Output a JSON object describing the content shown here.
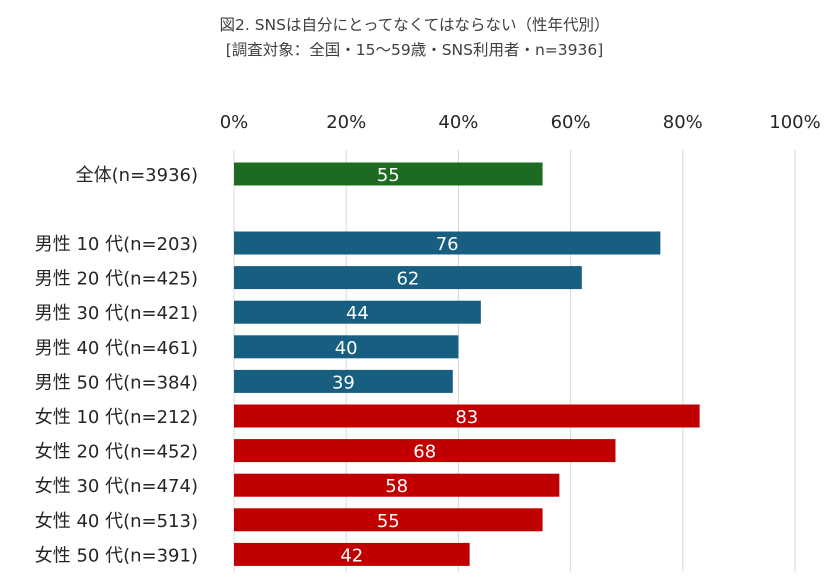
{
  "chart_data": {
    "type": "bar",
    "orientation": "horizontal",
    "title": "図2. SNSは自分にとってなくてはならない（性年代別）",
    "subtitle": "[調査対象：全国・15～59歳・SNS利用者・n=3936]",
    "xlim": [
      0,
      100
    ],
    "x_ticks": [
      "0%",
      "20%",
      "40%",
      "60%",
      "80%",
      "100%"
    ],
    "tick_values": [
      0,
      20,
      40,
      60,
      80,
      100
    ],
    "axis_position": "top",
    "grid": true,
    "categories": [
      "全体(n=3936)",
      "男性 10 代(n=203)",
      "男性 20 代(n=425)",
      "男性 30 代(n=421)",
      "男性 40 代(n=461)",
      "男性 50 代(n=384)",
      "女性 10 代(n=212)",
      "女性 20 代(n=452)",
      "女性 30 代(n=474)",
      "女性 40 代(n=513)",
      "女性 50 代(n=391)"
    ],
    "values": [
      55,
      76,
      62,
      44,
      40,
      39,
      83,
      68,
      58,
      55,
      42
    ],
    "groups": [
      "total",
      "male",
      "male",
      "male",
      "male",
      "male",
      "female",
      "female",
      "female",
      "female",
      "female"
    ],
    "colors": {
      "total": "#1D6B21",
      "male": "#175E80",
      "female": "#C00000"
    },
    "data_label_color": "#FFFFFF"
  }
}
